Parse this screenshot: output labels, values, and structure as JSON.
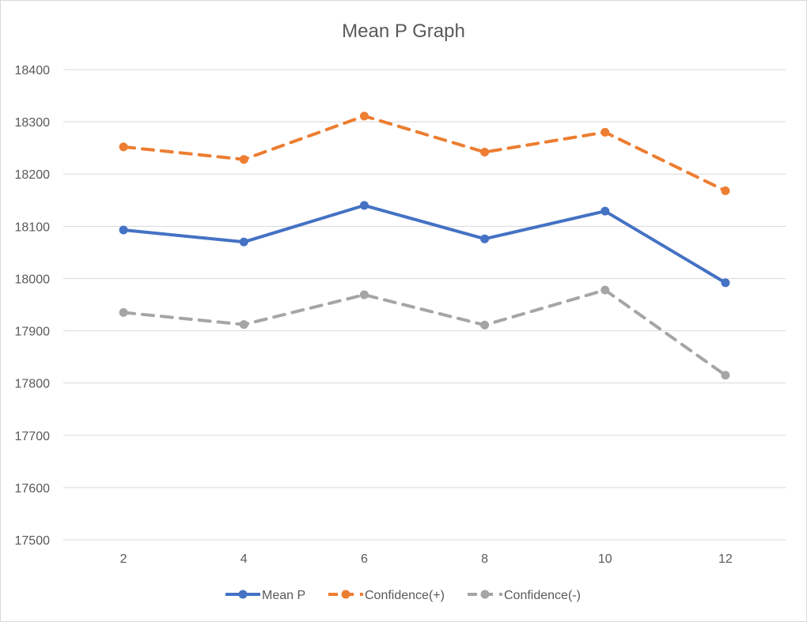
{
  "chart_data": {
    "type": "line",
    "title": "Mean P Graph",
    "xlabel": "",
    "ylabel": "",
    "categories": [
      "2",
      "4",
      "6",
      "8",
      "10",
      "12"
    ],
    "ylim": [
      17500,
      18400
    ],
    "yticks": [
      17500,
      17600,
      17700,
      17800,
      17900,
      18000,
      18100,
      18200,
      18300,
      18400
    ],
    "grid": true,
    "legend_position": "bottom",
    "series": [
      {
        "name": "Mean P",
        "values": [
          18093,
          18070,
          18140,
          18076,
          18129,
          17992
        ],
        "color": "#4472c4",
        "dashed": false
      },
      {
        "name": "Confidence(+)",
        "values": [
          18252,
          18228,
          18311,
          18242,
          18280,
          18168
        ],
        "color": "#ed7d31",
        "dashed": true
      },
      {
        "name": "Confidence(-)",
        "values": [
          17935,
          17912,
          17969,
          17911,
          17978,
          17815
        ],
        "color": "#a5a5a5",
        "dashed": true
      }
    ]
  }
}
